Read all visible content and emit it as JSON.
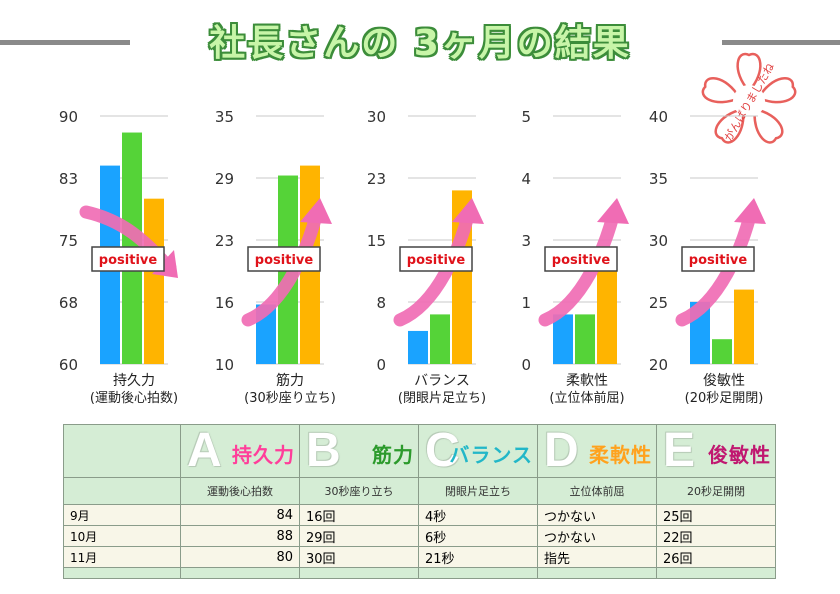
{
  "title": "社長さんの 3ヶ月の結果",
  "stamp": "がんばりましたね",
  "colors": {
    "sep": "#1aa3ff",
    "oct": "#55d338",
    "nov": "#ffb400",
    "arrow": "#f06cb4",
    "badge_text": "#e0121a"
  },
  "chart_data": [
    {
      "type": "bar",
      "name": "持久力",
      "xlabel": "持久力",
      "sublabel": "(運動後心拍数)",
      "ylim": [
        60,
        90
      ],
      "ticks": [
        "90",
        "83",
        "75",
        "68",
        "60"
      ],
      "categories": [
        "9月",
        "10月",
        "11月"
      ],
      "values": [
        84,
        88,
        80
      ],
      "badge": "positive",
      "trend": "down"
    },
    {
      "type": "bar",
      "name": "筋力",
      "xlabel": "筋力",
      "sublabel": "(30秒座り立ち)",
      "ylim": [
        10,
        35
      ],
      "ticks": [
        "35",
        "29",
        "23",
        "16",
        "10"
      ],
      "categories": [
        "9月",
        "10月",
        "11月"
      ],
      "values": [
        16,
        29,
        30
      ],
      "badge": "positive",
      "trend": "up"
    },
    {
      "type": "bar",
      "name": "バランス",
      "xlabel": "バランス",
      "sublabel": "(閉眼片足立ち)",
      "ylim": [
        0,
        30
      ],
      "ticks": [
        "30",
        "23",
        "15",
        "8",
        "0"
      ],
      "categories": [
        "9月",
        "10月",
        "11月"
      ],
      "values": [
        4,
        6,
        21
      ],
      "badge": "positive",
      "trend": "up"
    },
    {
      "type": "bar",
      "name": "柔軟性",
      "xlabel": "柔軟性",
      "sublabel": "(立位体前屈)",
      "ylim": [
        0,
        5
      ],
      "ticks": [
        "5",
        "4",
        "3",
        "1",
        "0"
      ],
      "categories": [
        "9月",
        "10月",
        "11月"
      ],
      "values": [
        1,
        1,
        2
      ],
      "badge": "positive",
      "trend": "up"
    },
    {
      "type": "bar",
      "name": "俊敏性",
      "xlabel": "俊敏性",
      "sublabel": "(20秒足開閉)",
      "ylim": [
        20,
        40
      ],
      "ticks": [
        "40",
        "35",
        "30",
        "25",
        "20"
      ],
      "categories": [
        "9月",
        "10月",
        "11月"
      ],
      "values": [
        25,
        22,
        26
      ],
      "badge": "positive",
      "trend": "up"
    }
  ],
  "table": {
    "headers": [
      {
        "letter": "A",
        "name": "持久力",
        "sub": "運動後心拍数",
        "color": "#ff3e9a"
      },
      {
        "letter": "B",
        "name": "筋力",
        "sub": "30秒座り立ち",
        "color": "#2c9a2c"
      },
      {
        "letter": "C",
        "name": "バランス",
        "sub": "閉眼片足立ち",
        "color": "#22b7c8"
      },
      {
        "letter": "D",
        "name": "柔軟性",
        "sub": "立位体前屈",
        "color": "#ffa21e"
      },
      {
        "letter": "E",
        "name": "俊敏性",
        "sub": "20秒足開閉",
        "color": "#c01870"
      }
    ],
    "rows": [
      {
        "month": "9月",
        "cells": [
          "84",
          "16回",
          "4秒",
          "つかない",
          "25回"
        ]
      },
      {
        "month": "10月",
        "cells": [
          "88",
          "29回",
          "6秒",
          "つかない",
          "22回"
        ]
      },
      {
        "month": "11月",
        "cells": [
          "80",
          "30回",
          "21秒",
          "指先",
          "26回"
        ]
      }
    ]
  }
}
